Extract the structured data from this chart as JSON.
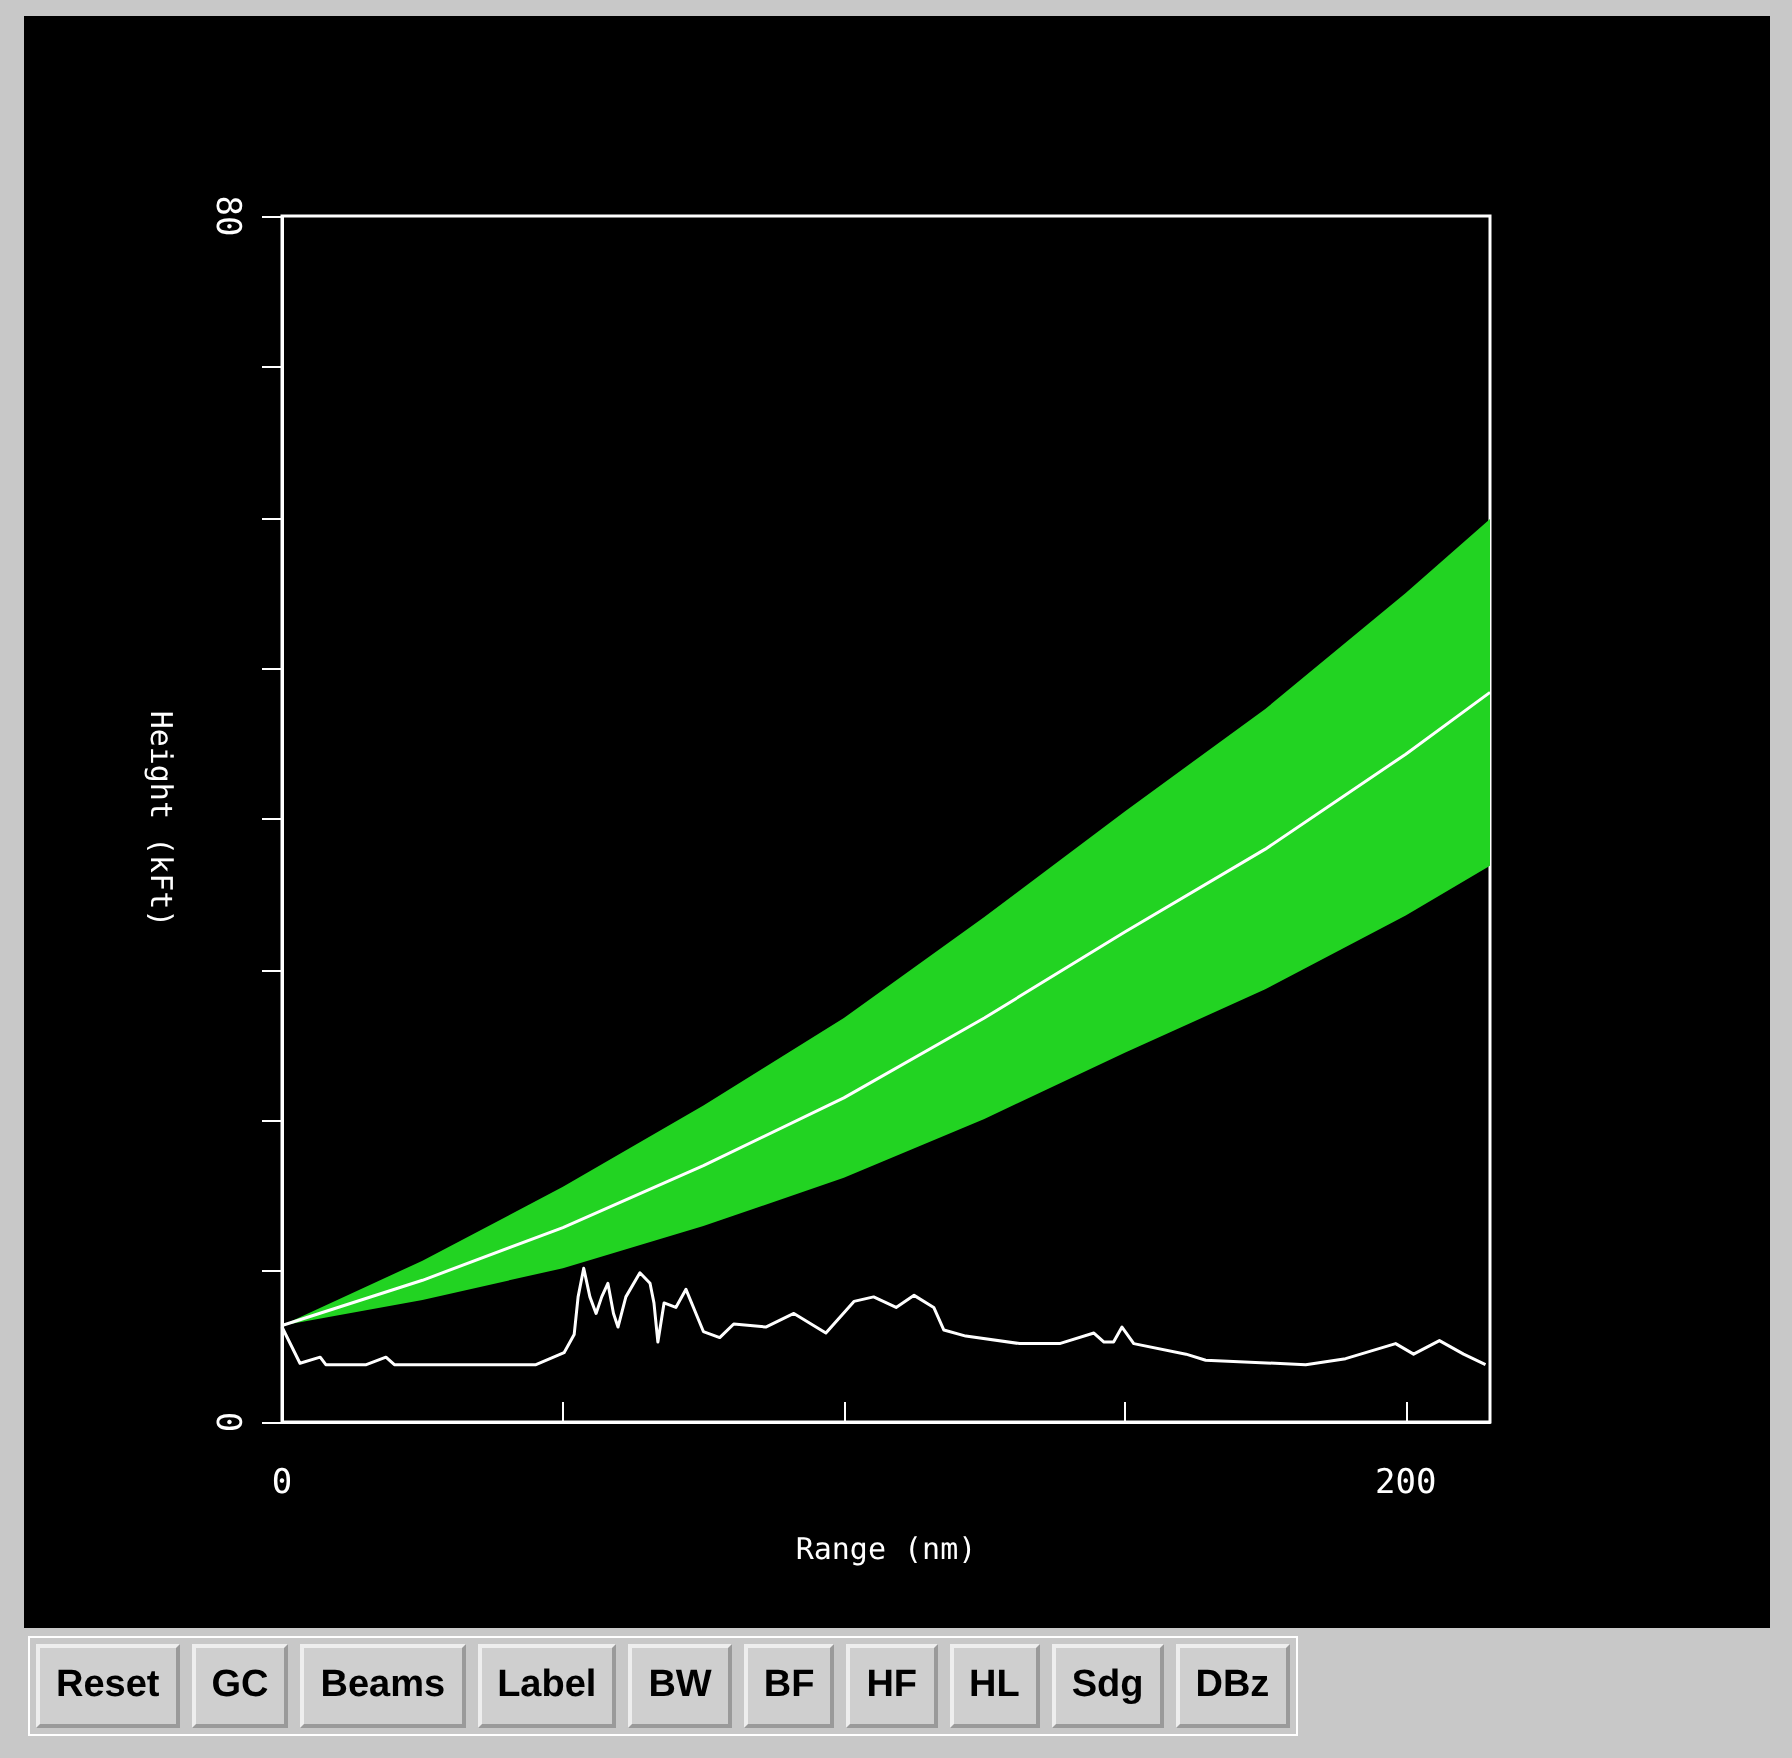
{
  "chart_data": {
    "type": "line",
    "xlabel": "Range (nm)",
    "ylabel": "Height (kFt)",
    "xlim": [
      0,
      215
    ],
    "ylim": [
      0,
      80
    ],
    "xticks": [
      0,
      {
        "value": 50,
        "label": null
      },
      {
        "value": 100,
        "label": null
      },
      {
        "value": 150,
        "label": null
      },
      200
    ],
    "yticks": [
      0,
      {
        "value": 10,
        "label": null
      },
      {
        "value": 20,
        "label": null
      },
      {
        "value": 30,
        "label": null
      },
      {
        "value": 40,
        "label": null
      },
      {
        "value": 50,
        "label": null
      },
      {
        "value": 60,
        "label": null
      },
      {
        "value": 70,
        "label": null
      },
      80
    ],
    "grid": false,
    "marker": "none",
    "line_style": "solid",
    "series": [
      {
        "color": "#ffffff",
        "x": [
          0,
          25,
          50,
          75,
          100,
          125,
          150,
          175,
          200,
          215
        ],
        "values": [
          6.4,
          9.4,
          12.9,
          17,
          21.5,
          26.8,
          32.5,
          38,
          44.3,
          48.4
        ],
        "lower": [
          6.4,
          8.1,
          10.2,
          13,
          16.2,
          20.1,
          24.5,
          28.7,
          33.6,
          36.9
        ],
        "upper": [
          6.4,
          10.7,
          15.6,
          21,
          26.8,
          33.5,
          40.5,
          47.3,
          55,
          59.9
        ]
      },
      {
        "color": "#ffffff",
        "x": [
          0,
          3.2,
          6.8,
          7.8,
          15,
          18.5,
          20,
          45.2,
          50.2,
          52,
          52.7,
          53.7,
          54.8,
          55.9,
          56.9,
          58,
          59,
          59.8,
          61.2,
          63.7,
          65.5,
          66.2,
          66.9,
          68,
          70.1,
          71.9,
          75,
          77.9,
          80.4,
          86.1,
          91.1,
          96.8,
          101.8,
          105.3,
          109.3,
          112.5,
          116,
          117.8,
          121.7,
          131.3,
          138.4,
          144.5,
          146.3,
          148,
          149.5,
          151.6,
          160.9,
          164.4,
          182.2,
          189.3,
          198.2,
          201.4,
          206,
          210.3,
          214.2
        ],
        "values": [
          6.3,
          3.9,
          4.3,
          3.8,
          3.8,
          4.3,
          3.8,
          3.8,
          4.6,
          5.8,
          8.3,
          10.2,
          8.3,
          7.2,
          8.3,
          9.2,
          7.2,
          6.3,
          8.3,
          9.9,
          9.2,
          7.9,
          5.3,
          7.9,
          7.6,
          8.8,
          6,
          5.6,
          6.5,
          6.3,
          7.2,
          5.9,
          8,
          8.3,
          7.6,
          8.4,
          7.6,
          6.1,
          5.7,
          5.2,
          5.2,
          5.9,
          5.3,
          5.3,
          6.3,
          5.2,
          4.5,
          4.1,
          3.8,
          4.2,
          5.2,
          4.5,
          5.4,
          4.5,
          3.8
        ]
      }
    ],
    "annotations": [
      "Reset",
      "GC",
      "Beams",
      "Label",
      "BW",
      "BF",
      "HF",
      "HL",
      "Sdg",
      "DBz"
    ]
  }
}
